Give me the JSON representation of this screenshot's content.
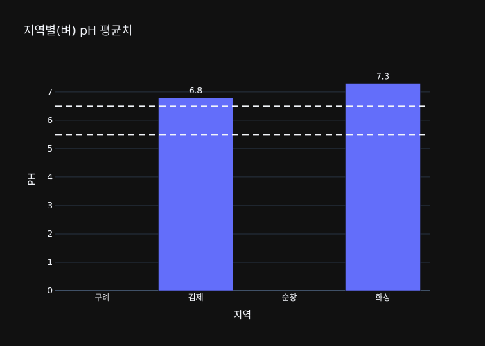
{
  "chart_data": {
    "type": "bar",
    "title": "지역별(벼) pH 평균치",
    "xlabel": "지역",
    "ylabel": "PH",
    "categories": [
      "구례",
      "김제",
      "순창",
      "화성"
    ],
    "values": [
      null,
      6.8,
      null,
      7.3
    ],
    "data_labels": [
      "",
      "6.8",
      "",
      "7.3"
    ],
    "ylim": [
      0,
      7.8
    ],
    "yticks": [
      0,
      1,
      2,
      3,
      4,
      5,
      6,
      7
    ],
    "reference_lines": [
      6.5,
      5.5
    ],
    "grid": true,
    "bar_color": "#636efa",
    "background": "#111111"
  }
}
